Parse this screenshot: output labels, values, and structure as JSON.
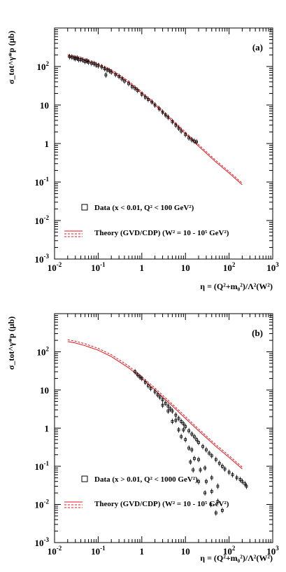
{
  "chart_data": [
    {
      "type": "scatter",
      "panel_label": "(a)",
      "ylabel": "σ_tot^γ*p (μb)",
      "xlabel": "η = (Q²+m₀²)/Λ²(W²)",
      "xscale": "log",
      "yscale": "log",
      "xlim": [
        0.01,
        1000
      ],
      "ylim": [
        0.001,
        1000
      ],
      "x_ticks": [
        "10^-2",
        "10^-1",
        "1",
        "10",
        "10^2",
        "10^3"
      ],
      "y_ticks": [
        "10^-3",
        "10^-2",
        "10^-1",
        "1",
        "10",
        "10^2"
      ],
      "legend": {
        "data": "Data (x < 0.01, Q² < 100 GeV²)",
        "theory": "Theory (GVD/CDP) (W² = 10 - 10⁵ GeV²)"
      },
      "series": [
        {
          "name": "Theory (GVD/CDP) (W² = 10 - 10⁵ GeV²)",
          "kind": "line",
          "color": "#e8141b",
          "band_factor": [
            1.0,
            1.1
          ],
          "x": [
            0.02,
            0.03,
            0.05,
            0.1,
            0.2,
            0.5,
            1,
            2,
            5,
            10,
            20,
            50,
            100,
            200
          ],
          "y": [
            185,
            170,
            145,
            110,
            75,
            38,
            20,
            10,
            3.8,
            1.8,
            0.85,
            0.33,
            0.17,
            0.085
          ]
        },
        {
          "name": "Data (x < 0.01, Q² < 100 GeV²)",
          "kind": "points",
          "color": "#000000",
          "x": [
            0.022,
            0.025,
            0.028,
            0.03,
            0.033,
            0.036,
            0.04,
            0.045,
            0.05,
            0.055,
            0.06,
            0.07,
            0.08,
            0.09,
            0.1,
            0.12,
            0.14,
            0.15,
            0.16,
            0.18,
            0.2,
            0.25,
            0.3,
            0.35,
            0.4,
            0.5,
            0.6,
            0.7,
            0.8,
            1,
            1.2,
            1.4,
            1.7,
            2,
            2.5,
            3,
            3.5,
            4,
            5,
            6,
            7,
            8,
            10,
            12,
            14,
            16,
            18
          ],
          "y": [
            180,
            175,
            168,
            160,
            165,
            150,
            152,
            145,
            135,
            140,
            130,
            122,
            118,
            110,
            105,
            98,
            88,
            60,
            82,
            78,
            72,
            62,
            55,
            48,
            42,
            36,
            30,
            27,
            24,
            19,
            16,
            14,
            12,
            10,
            8,
            6.5,
            5.5,
            4.8,
            3.7,
            3.0,
            2.5,
            2.1,
            1.7,
            1.4,
            1.25,
            1.15,
            1.1
          ]
        }
      ]
    },
    {
      "type": "scatter",
      "panel_label": "(b)",
      "ylabel": "σ_tot^γ*p (μb)",
      "xlabel": "η = (Q²+m₀²)/Λ²(W²)",
      "xscale": "log",
      "yscale": "log",
      "xlim": [
        0.01,
        1000
      ],
      "ylim": [
        0.001,
        1000
      ],
      "x_ticks": [
        "10^-2",
        "10^-1",
        "1",
        "10",
        "10^2",
        "10^3"
      ],
      "y_ticks": [
        "10^-3",
        "10^-2",
        "10^-1",
        "1",
        "10",
        "10^2"
      ],
      "legend": {
        "data": "Data (x > 0.01, Q² < 1000 GeV²)",
        "theory": "Theory (GVD/CDP) (W² = 10 - 10⁵ GeV²)"
      },
      "series": [
        {
          "name": "Theory (GVD/CDP) (W² = 10 - 10⁵ GeV²)",
          "kind": "line",
          "color": "#e8141b",
          "band_factor": [
            1.0,
            1.12
          ],
          "x": [
            0.02,
            0.03,
            0.05,
            0.1,
            0.2,
            0.5,
            1,
            2,
            5,
            10,
            20,
            50,
            100,
            200
          ],
          "y": [
            185,
            170,
            145,
            110,
            75,
            38,
            20,
            10,
            3.8,
            1.8,
            0.85,
            0.33,
            0.17,
            0.085
          ]
        },
        {
          "name": "Data (x > 0.01, Q² < 1000 GeV²)",
          "kind": "points",
          "color": "#000000",
          "x": [
            0.7,
            0.8,
            0.9,
            1,
            1.2,
            1.4,
            1.6,
            2,
            2.3,
            2.6,
            3,
            3.5,
            4,
            4.5,
            5,
            6,
            7,
            8,
            9,
            10,
            12,
            14,
            16,
            18,
            20,
            25,
            30,
            35,
            40,
            50,
            60,
            70,
            80,
            100,
            120,
            150,
            180,
            200,
            230,
            250,
            5,
            7,
            10,
            14,
            20,
            28,
            40,
            55,
            8,
            12,
            16,
            22,
            30,
            40,
            55,
            70,
            15,
            20,
            28,
            38,
            50,
            3,
            4,
            6,
            9,
            13
          ],
          "y": [
            30,
            25,
            22,
            20,
            16,
            13,
            11,
            9,
            7.5,
            6.5,
            5.5,
            4.5,
            3.8,
            3.2,
            2.8,
            2.2,
            1.8,
            1.5,
            1.3,
            1.1,
            0.85,
            0.7,
            0.6,
            0.5,
            0.42,
            0.33,
            0.27,
            0.22,
            0.19,
            0.15,
            0.12,
            0.1,
            0.085,
            0.07,
            0.06,
            0.05,
            0.045,
            0.04,
            0.035,
            0.03,
            1.5,
            0.9,
            0.5,
            0.27,
            0.15,
            0.09,
            0.05,
            0.03,
            0.6,
            0.3,
            0.16,
            0.08,
            0.04,
            0.022,
            0.012,
            0.007,
            0.08,
            0.04,
            0.02,
            0.01,
            0.006,
            4.0,
            2.8,
            1.6,
            0.9,
            0.13
          ]
        }
      ]
    }
  ]
}
